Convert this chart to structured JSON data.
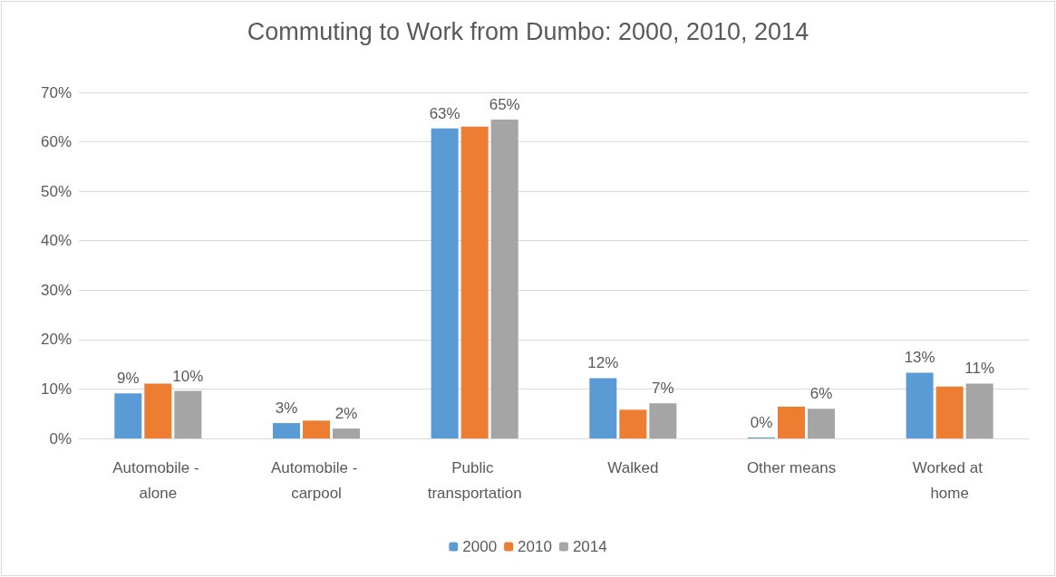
{
  "chart_data": {
    "type": "bar",
    "title": "Commuting to Work from Dumbo: 2000, 2010, 2014",
    "categories": [
      "Automobile - alone",
      "Automobile - carpool",
      "Public transportation",
      "Walked",
      "Other means",
      "Worked at home"
    ],
    "series": [
      {
        "name": "2000",
        "color": "#5b9bd5",
        "values": [
          9.1,
          3.1,
          62.7,
          12.2,
          0,
          13.3
        ],
        "value_labels": [
          "9%",
          "3%",
          "63%",
          "12%",
          "0%",
          "13%"
        ]
      },
      {
        "name": "2010",
        "color": "#ed7d31",
        "values": [
          11.1,
          3.6,
          63.1,
          5.8,
          6.4,
          10.5
        ],
        "value_labels": [
          null,
          null,
          null,
          null,
          null,
          null
        ]
      },
      {
        "name": "2014",
        "color": "#a5a5a5",
        "values": [
          9.6,
          2.0,
          64.5,
          7.1,
          6.0,
          11.1
        ],
        "value_labels": [
          "10%",
          "2%",
          "65%",
          "7%",
          "6%",
          "11%"
        ]
      }
    ],
    "ylim": [
      0,
      70
    ],
    "yticks": [
      {
        "value": 0,
        "label": "0%"
      },
      {
        "value": 10,
        "label": "10%"
      },
      {
        "value": 20,
        "label": "20%"
      },
      {
        "value": 30,
        "label": "30%"
      },
      {
        "value": 40,
        "label": "40%"
      },
      {
        "value": 50,
        "label": "50%"
      },
      {
        "value": 60,
        "label": "60%"
      },
      {
        "value": 70,
        "label": "70%"
      }
    ],
    "grid": "y",
    "legend": "bottom"
  }
}
